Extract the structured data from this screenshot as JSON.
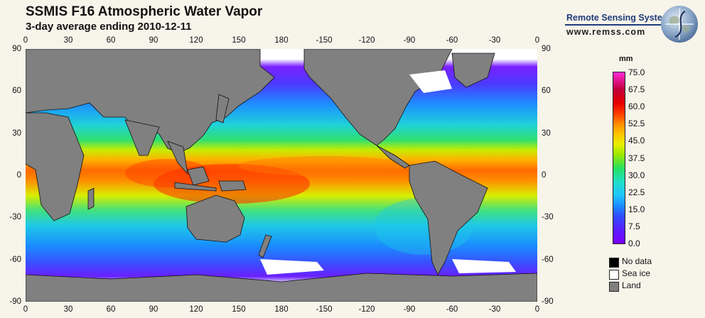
{
  "header": {
    "title": "SSMIS F16 Atmospheric Water Vapor",
    "subtitle": "3-day average ending 2010-12-11"
  },
  "brand": {
    "name": "Remote Sensing Systems",
    "url": "www.remss.com"
  },
  "map": {
    "lon_ticks": [
      "0",
      "30",
      "60",
      "90",
      "120",
      "150",
      "180",
      "-150",
      "-120",
      "-90",
      "-60",
      "-30",
      "0"
    ],
    "lat_ticks": [
      "90",
      "60",
      "30",
      "0",
      "-30",
      "-60",
      "-90"
    ],
    "lon_range": [
      0,
      360
    ],
    "lat_range": [
      -90,
      90
    ],
    "projection": "equirectangular, centered at 180"
  },
  "colorbar": {
    "unit": "mm",
    "labels": [
      "75.0",
      "67.5",
      "60.0",
      "52.5",
      "45.0",
      "37.5",
      "30.0",
      "22.5",
      "15.0",
      "7.5",
      "0.0"
    ],
    "min": 0.0,
    "max": 75.0
  },
  "legend": [
    {
      "label": "No data",
      "color": "#000000"
    },
    {
      "label": "Sea ice",
      "color": "#ffffff"
    },
    {
      "label": "Land",
      "color": "#808080"
    }
  ],
  "colors": {
    "background": "#f7f4ea",
    "land": "#808080",
    "sea_ice": "#ffffff",
    "no_data": "#000000",
    "brand_blue": "#1f3a7a"
  }
}
